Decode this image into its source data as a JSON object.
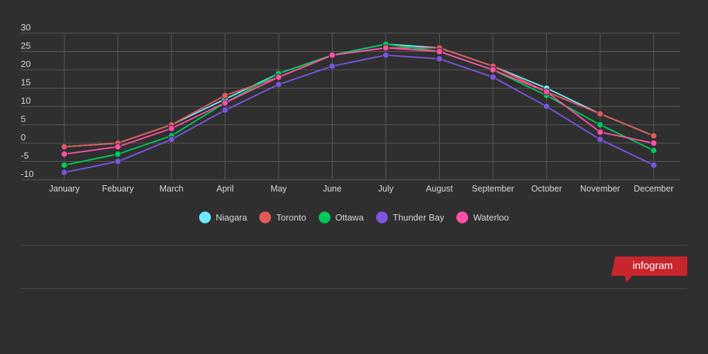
{
  "chart_data": {
    "type": "line",
    "categories": [
      "January",
      "Febuary",
      "March",
      "April",
      "May",
      "June",
      "July",
      "August",
      "September",
      "October",
      "November",
      "December"
    ],
    "ylim": [
      -10,
      30
    ],
    "yticks": [
      30,
      25,
      20,
      15,
      10,
      5,
      0,
      -5,
      -10
    ],
    "grid": true,
    "legend_position": "bottom-center",
    "series": [
      {
        "name": "Niagara",
        "color": "#6fe9ff",
        "values": [
          -1,
          0,
          5,
          12,
          19,
          24,
          27,
          26,
          21,
          15,
          8,
          2
        ]
      },
      {
        "name": "Toronto",
        "color": "#e05a5a",
        "values": [
          -1,
          0,
          5,
          13,
          18,
          24,
          26,
          26,
          21,
          14,
          8,
          2
        ]
      },
      {
        "name": "Ottawa",
        "color": "#00c95a",
        "values": [
          -6,
          -3,
          2,
          11,
          19,
          24,
          27,
          25,
          20,
          13,
          5,
          -2
        ]
      },
      {
        "name": "Thunder Bay",
        "color": "#7a55e0",
        "values": [
          -8,
          -5,
          1,
          9,
          16,
          21,
          24,
          23,
          18,
          10,
          1,
          -6
        ]
      },
      {
        "name": "Waterloo",
        "color": "#ff4fa8",
        "values": [
          -3,
          -1,
          4,
          11,
          18,
          24,
          26,
          25,
          20,
          14,
          3,
          0
        ]
      }
    ]
  },
  "brand": {
    "label": "infogram",
    "color": "#c9252c"
  }
}
